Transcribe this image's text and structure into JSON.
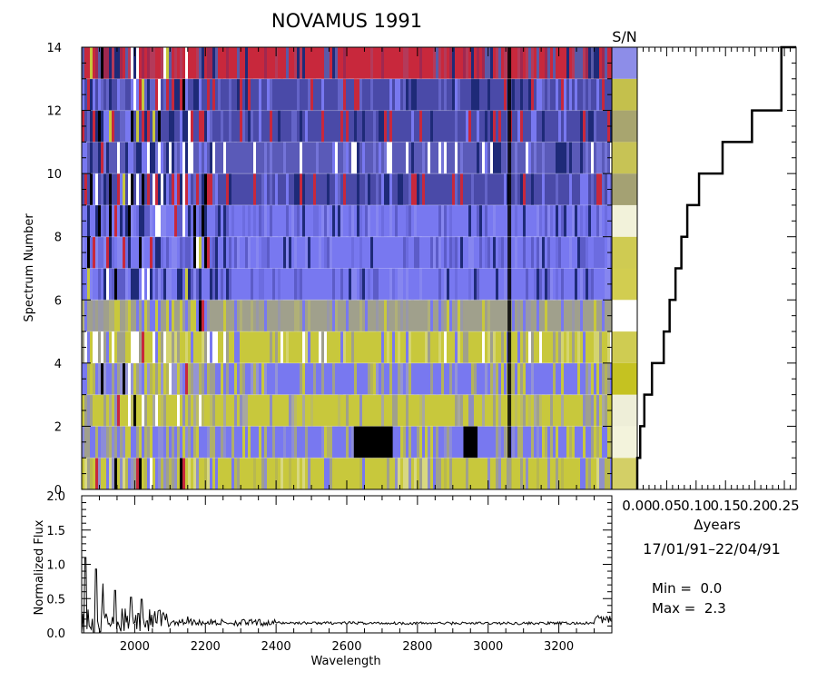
{
  "chart_data": [
    {
      "type": "heatmap",
      "title": "NOVAMUS 1991",
      "ylabel": "Spectrum Number",
      "xlim": [
        1850,
        3350
      ],
      "ylim": [
        0,
        14
      ],
      "yticks": [
        0,
        2,
        4,
        6,
        8,
        10,
        12,
        14
      ],
      "rows": 14,
      "color_by_row": [
        "yellow-blue",
        "blue-yellow-black",
        "yellow-gray",
        "blue-yellow",
        "yellow-white",
        "gray-yellow",
        "blue-violet",
        "blue-violet",
        "blue-violet",
        "blue-red",
        "blue-white",
        "blue-red",
        "blue-red",
        "red-blue"
      ],
      "dark_absorption_x": 3060,
      "black_bands_row2": [
        [
          2620,
          2730
        ],
        [
          2930,
          2970
        ]
      ]
    },
    {
      "type": "heatmap",
      "title": "S/N",
      "rows": 14,
      "cell_colors": [
        "#d3cf66",
        "#f3f3dc",
        "#eeeed8",
        "#c5c221",
        "#cfcc52",
        "#ffffff",
        "#d2cd50",
        "#cfcb52",
        "#f2f2da",
        "#a4a173",
        "#c7c355",
        "#a8a56f",
        "#c4c04c",
        "#8d8de8"
      ]
    },
    {
      "type": "line",
      "title": "",
      "xlabel": "Δyears",
      "ylabel": "",
      "xlim": [
        0.0,
        0.27
      ],
      "ylim": [
        0,
        14
      ],
      "xtick_labels": [
        "0.00",
        "0.05",
        "0.10",
        "0.15",
        "0.20",
        "0.25"
      ],
      "xticks": [
        0.0,
        0.05,
        0.1,
        0.15,
        0.2,
        0.25
      ],
      "step_x": [
        0.0,
        0.005,
        0.012,
        0.025,
        0.045,
        0.055,
        0.065,
        0.075,
        0.085,
        0.105,
        0.145,
        0.195,
        0.245
      ],
      "rows": 14
    },
    {
      "type": "line",
      "title": "",
      "xlabel": "Wavelength",
      "ylabel": "Normalized Flux",
      "xlim": [
        1850,
        3350
      ],
      "ylim": [
        0.0,
        2.0
      ],
      "xticks": [
        2000,
        2200,
        2400,
        2600,
        2800,
        3000,
        3200
      ],
      "yticks": [
        0.0,
        0.5,
        1.0,
        1.5,
        2.0
      ],
      "ytick_labels": [
        "0.0",
        "0.5",
        "1.0",
        "1.5",
        "2.0"
      ],
      "baseline": 0.14,
      "peaks": [
        {
          "x": 1860,
          "y": 1.1
        },
        {
          "x": 1890,
          "y": 0.93
        },
        {
          "x": 1910,
          "y": 0.72
        },
        {
          "x": 1945,
          "y": 0.62
        },
        {
          "x": 1990,
          "y": 0.52
        },
        {
          "x": 2020,
          "y": 0.49
        },
        {
          "x": 2070,
          "y": 0.33
        },
        {
          "x": 2150,
          "y": 0.24
        }
      ]
    }
  ],
  "info": {
    "date_range": "17/01/91–22/04/91",
    "min_line": "Min =  0.0",
    "max_line": "Max =  2.3"
  },
  "colors": {
    "yellow": "#c8c83c",
    "blue": "#7878f0",
    "navy": "#1e2a78",
    "red": "#c8283c",
    "gray": "#a0a08c",
    "white": "#ffffff",
    "black": "#000000"
  }
}
